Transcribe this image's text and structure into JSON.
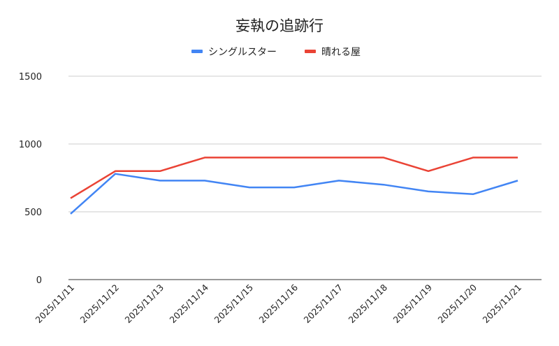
{
  "chart_data": {
    "type": "line",
    "title": "妄執の追跡行",
    "xlabel": "",
    "ylabel": "",
    "ylim": [
      0,
      1500
    ],
    "yticks": [
      "0",
      "500",
      "1000",
      "1500"
    ],
    "ytick_values": [
      0,
      500,
      1000,
      1500
    ],
    "grid": true,
    "legend_position": "top",
    "categories": [
      "2025/11/11",
      "2025/11/12",
      "2025/11/13",
      "2025/11/14",
      "2025/11/15",
      "2025/11/16",
      "2025/11/17",
      "2025/11/18",
      "2025/11/19",
      "2025/11/20",
      "2025/11/21"
    ],
    "series": [
      {
        "name": "シングルスター",
        "color": "#4285f4",
        "values": [
          485,
          780,
          730,
          730,
          680,
          680,
          730,
          700,
          650,
          630,
          730
        ]
      },
      {
        "name": "晴れる屋",
        "color": "#ea4335",
        "values": [
          600,
          800,
          800,
          900,
          900,
          900,
          900,
          900,
          800,
          900,
          900
        ]
      }
    ]
  }
}
